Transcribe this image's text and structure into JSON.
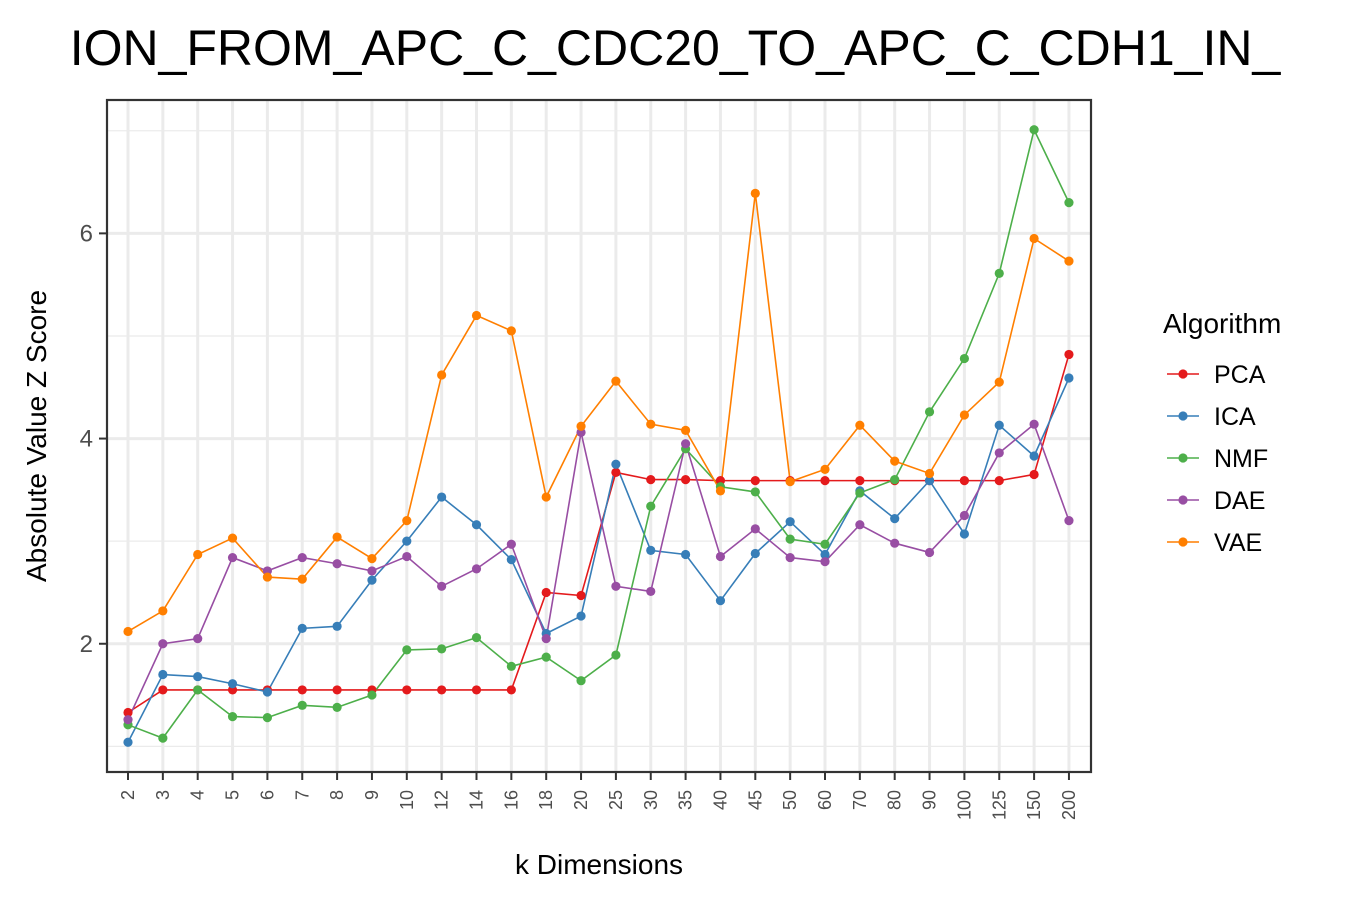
{
  "chart_data": {
    "type": "line",
    "title": "ION_FROM_APC_C_CDC20_TO_APC_C_CDH1_IN_",
    "xlabel": "k Dimensions",
    "ylabel": "Absolute Value Z Score",
    "categories": [
      "2",
      "3",
      "4",
      "5",
      "6",
      "7",
      "8",
      "9",
      "10",
      "12",
      "14",
      "16",
      "18",
      "20",
      "25",
      "30",
      "35",
      "40",
      "45",
      "50",
      "60",
      "70",
      "80",
      "90",
      "100",
      "125",
      "150",
      "200"
    ],
    "ylim": [
      0.75,
      7.3
    ],
    "yticks": [
      2,
      4,
      6
    ],
    "grid": true,
    "legend": {
      "title": "Algorithm",
      "position": "right"
    },
    "series": [
      {
        "name": "PCA",
        "color": "#E41A1C",
        "values": [
          1.33,
          1.55,
          1.55,
          1.55,
          1.55,
          1.55,
          1.55,
          1.55,
          1.55,
          1.55,
          1.55,
          1.55,
          2.5,
          2.47,
          3.67,
          3.6,
          3.6,
          3.59,
          3.59,
          3.59,
          3.59,
          3.59,
          3.59,
          3.59,
          3.59,
          3.59,
          3.65,
          4.82
        ]
      },
      {
        "name": "ICA",
        "color": "#377EB8",
        "values": [
          1.04,
          1.7,
          1.68,
          1.61,
          1.53,
          2.15,
          2.17,
          2.62,
          3.0,
          3.43,
          3.16,
          2.82,
          2.1,
          2.27,
          3.75,
          2.91,
          2.87,
          2.42,
          2.88,
          3.19,
          2.87,
          3.49,
          3.22,
          3.59,
          3.07,
          4.13,
          3.83,
          4.59
        ]
      },
      {
        "name": "NMF",
        "color": "#4DAF4A",
        "values": [
          1.21,
          1.08,
          1.55,
          1.29,
          1.28,
          1.4,
          1.38,
          1.5,
          1.94,
          1.95,
          2.06,
          1.78,
          1.87,
          1.64,
          1.89,
          3.34,
          3.9,
          3.53,
          3.48,
          3.02,
          2.97,
          3.47,
          3.6,
          4.26,
          4.78,
          5.61,
          7.01,
          6.3
        ]
      },
      {
        "name": "DAE",
        "color": "#984EA3",
        "values": [
          1.26,
          2.0,
          2.05,
          2.84,
          2.71,
          2.84,
          2.78,
          2.71,
          2.85,
          2.56,
          2.73,
          2.97,
          2.05,
          4.06,
          2.56,
          2.51,
          3.95,
          2.85,
          3.12,
          2.84,
          2.8,
          3.16,
          2.98,
          2.89,
          3.25,
          3.86,
          4.14,
          3.2
        ]
      },
      {
        "name": "VAE",
        "color": "#FF7F00",
        "values": [
          2.12,
          2.32,
          2.87,
          3.03,
          2.65,
          2.63,
          3.04,
          2.83,
          3.2,
          4.62,
          5.2,
          5.05,
          3.43,
          4.12,
          4.56,
          4.14,
          4.08,
          3.49,
          6.39,
          3.58,
          3.7,
          4.13,
          3.78,
          3.66,
          4.23,
          4.55,
          5.95,
          5.73
        ]
      }
    ]
  }
}
